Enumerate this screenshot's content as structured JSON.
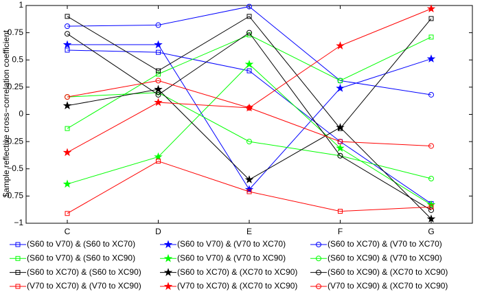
{
  "chart_data": {
    "type": "line",
    "y_label": "Sample reflective cross−correlation coefficient",
    "categories": [
      "C",
      "D",
      "E",
      "F",
      "G"
    ],
    "ylim": [
      -1,
      1
    ],
    "yticks": [
      {
        "value": -1,
        "label": "−1"
      },
      {
        "value": -0.75,
        "label": "−0.75"
      },
      {
        "value": -0.5,
        "label": "−0.5"
      },
      {
        "value": -0.25,
        "label": "−0.25"
      },
      0,
      0.25,
      0.5,
      0.75,
      1
    ],
    "series": [
      {
        "name": "(S60 to V70) & (S60 to XC70)",
        "color": "#0000ff",
        "marker": "square",
        "values": [
          0.59,
          0.57,
          0.4,
          -0.25,
          -0.82
        ]
      },
      {
        "name": "(S60 to V70) & (V70 to XC70)",
        "color": "#0000ff",
        "marker": "star",
        "values": [
          0.64,
          0.64,
          -0.69,
          0.24,
          0.51
        ]
      },
      {
        "name": "(S60 to XC70) & (V70 to XC70)",
        "color": "#0000ff",
        "marker": "circle",
        "values": [
          0.81,
          0.82,
          0.99,
          0.31,
          0.18
        ]
      },
      {
        "name": "(S60 to V70) & (S60 to XC90)",
        "color": "#00ff00",
        "marker": "square",
        "values": [
          -0.13,
          0.37,
          0.73,
          0.31,
          0.71
        ]
      },
      {
        "name": "(S60 to V70) & (V70 to XC90)",
        "color": "#00ff00",
        "marker": "star",
        "values": [
          -0.64,
          -0.39,
          0.46,
          -0.31,
          -0.83
        ]
      },
      {
        "name": "(S60 to XC90) & (V70 to XC90)",
        "color": "#00ff00",
        "marker": "circle",
        "values": [
          0.16,
          0.2,
          -0.25,
          -0.38,
          -0.59
        ]
      },
      {
        "name": "(S60 to XC70) & (S60 to XC90)",
        "color": "#000000",
        "marker": "square",
        "values": [
          0.9,
          0.4,
          0.9,
          -0.13,
          0.88
        ]
      },
      {
        "name": "(S60 to XC70) & (XC70 to XC90)",
        "color": "#000000",
        "marker": "star",
        "values": [
          0.08,
          0.23,
          -0.6,
          -0.12,
          -0.96
        ]
      },
      {
        "name": "(S60 to XC90) & (XC70 to XC90)",
        "color": "#000000",
        "marker": "circle",
        "values": [
          0.74,
          0.18,
          0.75,
          -0.38,
          -0.88
        ]
      },
      {
        "name": "(V70 to XC70) & (V70 to XC90)",
        "color": "#ff0000",
        "marker": "square",
        "values": [
          -0.91,
          -0.43,
          -0.71,
          -0.89,
          -0.85
        ]
      },
      {
        "name": "(V70 to XC70) & (XC70 to XC90)",
        "color": "#ff0000",
        "marker": "star",
        "values": [
          -0.35,
          0.11,
          0.06,
          0.63,
          0.97
        ]
      },
      {
        "name": "(V70 to XC90) & (XC70 to XC90)",
        "color": "#ff0000",
        "marker": "circle",
        "values": [
          0.16,
          0.31,
          0.06,
          -0.25,
          -0.29
        ]
      }
    ]
  }
}
